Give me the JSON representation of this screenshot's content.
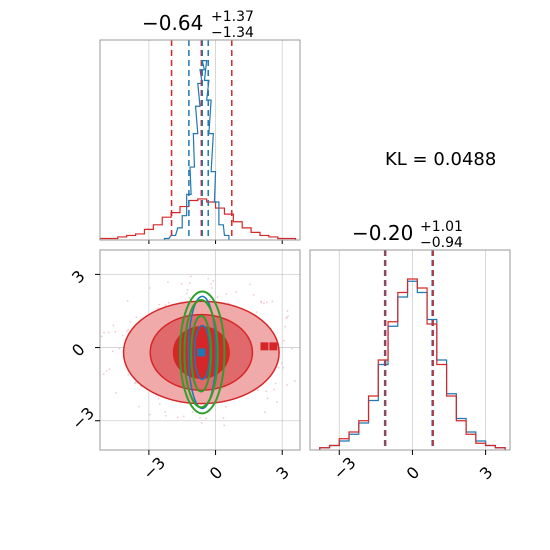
{
  "annotation": {
    "kl_label": "KL = 0.0488"
  },
  "colors": {
    "red": "#d62728",
    "blue": "#1f77b4",
    "green": "#2ca02c",
    "red_fill_dark": "#d62728",
    "red_fill_mid": "#e06a6b",
    "red_fill_light": "#f0aaaa"
  },
  "chart_data": [
    {
      "type": "histogram",
      "panel": "param-1-marginal",
      "title": {
        "median": "−0.64",
        "plus": "+1.37",
        "minus": "−1.34"
      },
      "xlim": [
        -5.2,
        3.8
      ],
      "grid": true,
      "quantile_lines": {
        "red": [
          -1.98,
          -0.64,
          0.73
        ],
        "blue": [
          -1.2,
          -0.6,
          -0.33
        ]
      },
      "series": [
        {
          "color": "red",
          "x": [
            -5.0,
            -4.6,
            -4.2,
            -3.8,
            -3.4,
            -3.0,
            -2.6,
            -2.2,
            -1.8,
            -1.4,
            -1.0,
            -0.6,
            -0.2,
            0.2,
            0.6,
            1.0,
            1.4,
            1.8,
            2.2,
            2.6,
            3.0,
            3.4
          ],
          "values": [
            1,
            1,
            2,
            3,
            4,
            7,
            10,
            15,
            18,
            22,
            26,
            27,
            25,
            21,
            17,
            12,
            8,
            5,
            3,
            2,
            1,
            1
          ]
        },
        {
          "color": "blue",
          "x": [
            -2.2,
            -1.9,
            -1.6,
            -1.4,
            -1.2,
            -1.05,
            -0.9,
            -0.8,
            -0.7,
            -0.6,
            -0.5,
            -0.4,
            -0.3,
            -0.2,
            -0.1,
            0.05,
            0.25,
            0.5
          ],
          "values": [
            1,
            3,
            8,
            16,
            30,
            48,
            70,
            88,
            103,
            112,
            118,
            105,
            92,
            70,
            45,
            25,
            10,
            3
          ]
        }
      ]
    },
    {
      "type": "contour",
      "panel": "joint",
      "xlim": [
        -5.2,
        3.8
      ],
      "ylim": [
        -4.2,
        4.0
      ],
      "xticks": [
        "−3",
        "0",
        "3"
      ],
      "yticks": [
        "−3",
        "0",
        "3"
      ],
      "grid": true,
      "red_contours": [
        {
          "level": "outer",
          "cx": -0.64,
          "cy": -0.2,
          "rx": 3.5,
          "ry": 2.1
        },
        {
          "level": "mid",
          "cx": -0.64,
          "cy": -0.2,
          "rx": 2.3,
          "ry": 1.55
        },
        {
          "level": "inner",
          "cx": -0.64,
          "cy": -0.2,
          "rx": 1.25,
          "ry": 1.05
        }
      ],
      "blue_contours": [
        {
          "cx": -0.6,
          "cy": -0.2,
          "rx": 0.35,
          "ry": 1.1
        },
        {
          "cx": -0.6,
          "cy": -0.2,
          "rx": 0.62,
          "ry": 2.3
        }
      ],
      "green_contours": [
        {
          "cx": -0.65,
          "cy": -0.25,
          "rx": 0.45,
          "ry": 1.55
        },
        {
          "cx": -0.65,
          "cy": -0.25,
          "rx": 0.75,
          "ry": 2.2
        },
        {
          "cx": -0.6,
          "cy": -0.2,
          "rx": 1.0,
          "ry": 2.5
        }
      ],
      "markers": [
        {
          "color": "blue",
          "x": -0.64,
          "y": -0.2
        },
        {
          "color": "red",
          "x": 2.2,
          "y": 0.05
        },
        {
          "color": "red",
          "x": 2.6,
          "y": 0.05
        }
      ]
    },
    {
      "type": "histogram",
      "panel": "param-2-marginal",
      "title": {
        "median": "−0.20",
        "plus": "+1.01",
        "minus": "−0.94"
      },
      "xlim": [
        -4.2,
        4.0
      ],
      "xticks": [
        "−3",
        "0",
        "3"
      ],
      "grid": true,
      "quantile_lines": {
        "red": [
          -1.14,
          0.81
        ],
        "blue": [
          -1.14,
          0.81
        ]
      },
      "series": [
        {
          "color": "blue",
          "x": [
            -3.6,
            -3.2,
            -2.8,
            -2.4,
            -2.0,
            -1.6,
            -1.2,
            -0.8,
            -0.4,
            0.0,
            0.4,
            0.8,
            1.2,
            1.6,
            2.0,
            2.4,
            2.8,
            3.2,
            3.6
          ],
          "values": [
            1,
            2,
            4,
            7,
            12,
            22,
            38,
            55,
            68,
            75,
            70,
            58,
            40,
            25,
            14,
            8,
            4,
            2,
            1
          ]
        },
        {
          "color": "red",
          "x": [
            -3.6,
            -3.2,
            -2.8,
            -2.4,
            -2.0,
            -1.6,
            -1.2,
            -0.8,
            -0.4,
            0.0,
            0.4,
            0.8,
            1.2,
            1.6,
            2.0,
            2.4,
            2.8,
            3.2,
            3.6
          ],
          "values": [
            1,
            2,
            5,
            8,
            13,
            24,
            40,
            57,
            70,
            76,
            72,
            56,
            38,
            24,
            13,
            7,
            3,
            2,
            1
          ]
        }
      ]
    }
  ]
}
